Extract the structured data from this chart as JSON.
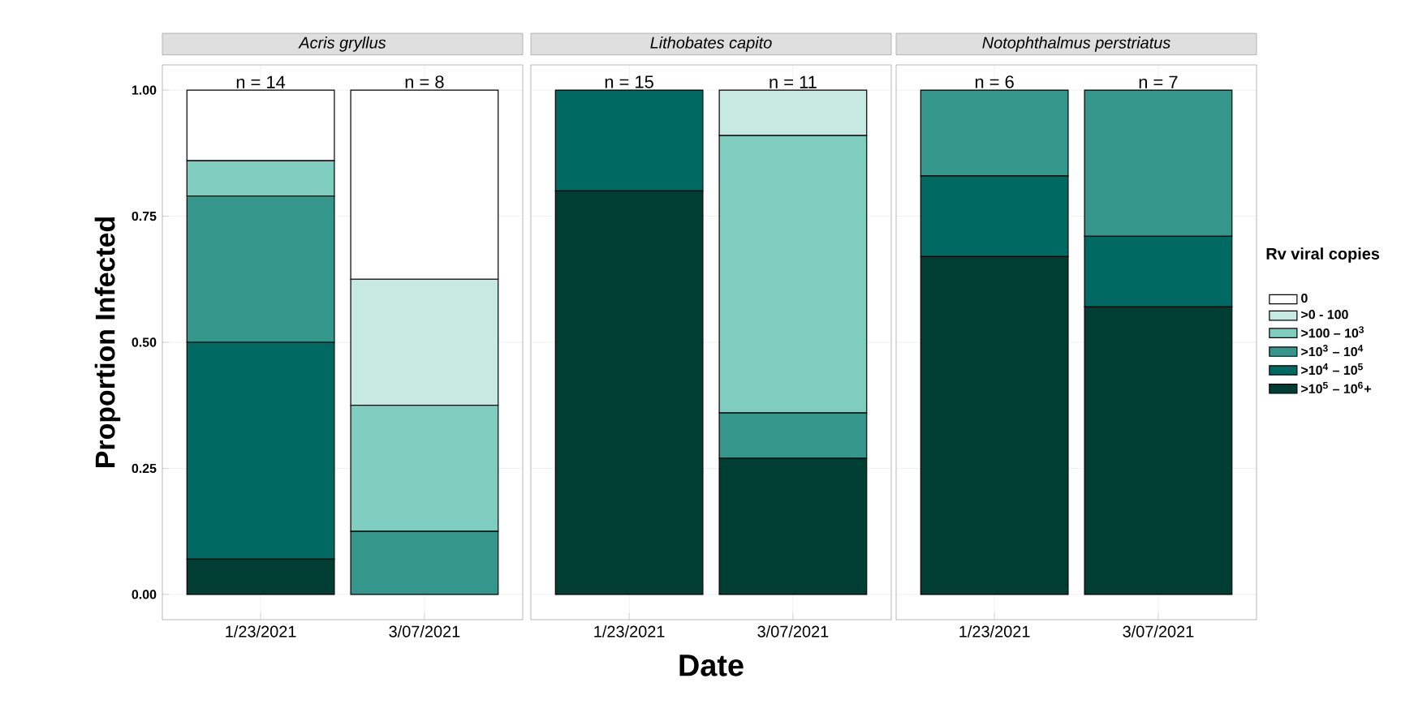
{
  "chart_data": [
    {
      "type": "bar",
      "stacked": true,
      "title": "Acris gryllus",
      "ylabel": "Proportion Infected",
      "categories": [
        "1/23/2021",
        "3/07/2021"
      ],
      "ylim": [
        -0.05,
        1.05
      ],
      "yticks": [
        {
          "value": 0,
          "label": "0.00"
        },
        {
          "value": 0.25,
          "label": "0.25"
        },
        {
          "value": 0.5,
          "label": "0.50"
        },
        {
          "value": 0.75,
          "label": "0.75"
        },
        {
          "value": 1,
          "label": "1.00"
        }
      ],
      "grid": true,
      "series": [
        {
          "color": "#003d32",
          "values": [
            0.07,
            0
          ]
        },
        {
          "color": "#006a62",
          "values": [
            0.43,
            0
          ]
        },
        {
          "color": "#35968c",
          "values": [
            0.29,
            0.125
          ]
        },
        {
          "color": "#7fcdbf",
          "values": [
            0.07,
            0.25
          ]
        },
        {
          "color": "#c6e9e2",
          "values": [
            0,
            0.25
          ]
        },
        {
          "color": "#ffffff",
          "values": [
            0.14,
            0.375
          ]
        }
      ],
      "annotations": [
        {
          "text": "n = 14",
          "x": "1/23/2021",
          "y": 1
        },
        {
          "text": "n = 8",
          "x": "3/07/2021",
          "y": 1
        }
      ]
    },
    {
      "type": "bar",
      "stacked": true,
      "title": "Lithobates capito",
      "xlabel": "Date",
      "categories": [
        "1/23/2021",
        "3/07/2021"
      ],
      "ylim": [
        -0.05,
        1.05
      ],
      "yticks": [
        0,
        0.25,
        0.5,
        0.75,
        1
      ],
      "grid": true,
      "tick_labels": "x",
      "series": [
        {
          "color": "#003d32",
          "values": [
            0.8,
            0.27
          ]
        },
        {
          "color": "#006a62",
          "values": [
            0.2,
            0
          ]
        },
        {
          "color": "#35968c",
          "values": [
            0,
            0.09
          ]
        },
        {
          "color": "#7fcdbf",
          "values": [
            0,
            0.55
          ]
        },
        {
          "color": "#c6e9e2",
          "values": [
            0,
            0.09
          ]
        },
        {
          "color": "#ffffff",
          "values": [
            0,
            0
          ]
        }
      ],
      "annotations": [
        {
          "text": "n = 15",
          "x": "1/23/2021",
          "y": 1
        },
        {
          "text": "n = 11",
          "x": "3/07/2021",
          "y": 1
        }
      ]
    },
    {
      "type": "bar",
      "stacked": true,
      "title": "Notophthalmus perstriatus",
      "categories": [
        "1/23/2021",
        "3/07/2021"
      ],
      "ylim": [
        -0.05,
        1.05
      ],
      "yticks": [
        0,
        0.25,
        0.5,
        0.75,
        1
      ],
      "grid": true,
      "tick_labels": "x",
      "legend": "right",
      "legend_title": "Rv viral copies",
      "series": [
        {
          "name": ">10$^{5}$ – 10$^{6}$+",
          "color": "#003d32",
          "values": [
            0.67,
            0.57
          ]
        },
        {
          "name": ">10$^{4}$ – 10$^{5}$",
          "color": "#006a62",
          "values": [
            0.16,
            0.14
          ]
        },
        {
          "name": ">10$^{3}$ – 10$^{4}$",
          "color": "#35968c",
          "values": [
            0.17,
            0.29
          ]
        },
        {
          "name": ">100 – 10$^{3}$",
          "color": "#7fcdbf",
          "values": [
            0,
            0
          ]
        },
        {
          "name": ">0 - 100",
          "color": "#c6e9e2",
          "values": [
            0,
            0
          ]
        },
        {
          "name": "0",
          "color": "#ffffff",
          "values": [
            0,
            0
          ]
        }
      ],
      "annotations": [
        {
          "text": "n = 6",
          "x": "1/23/2021",
          "y": 1
        },
        {
          "text": "n = 7",
          "x": "3/07/2021",
          "y": 1
        }
      ]
    }
  ]
}
